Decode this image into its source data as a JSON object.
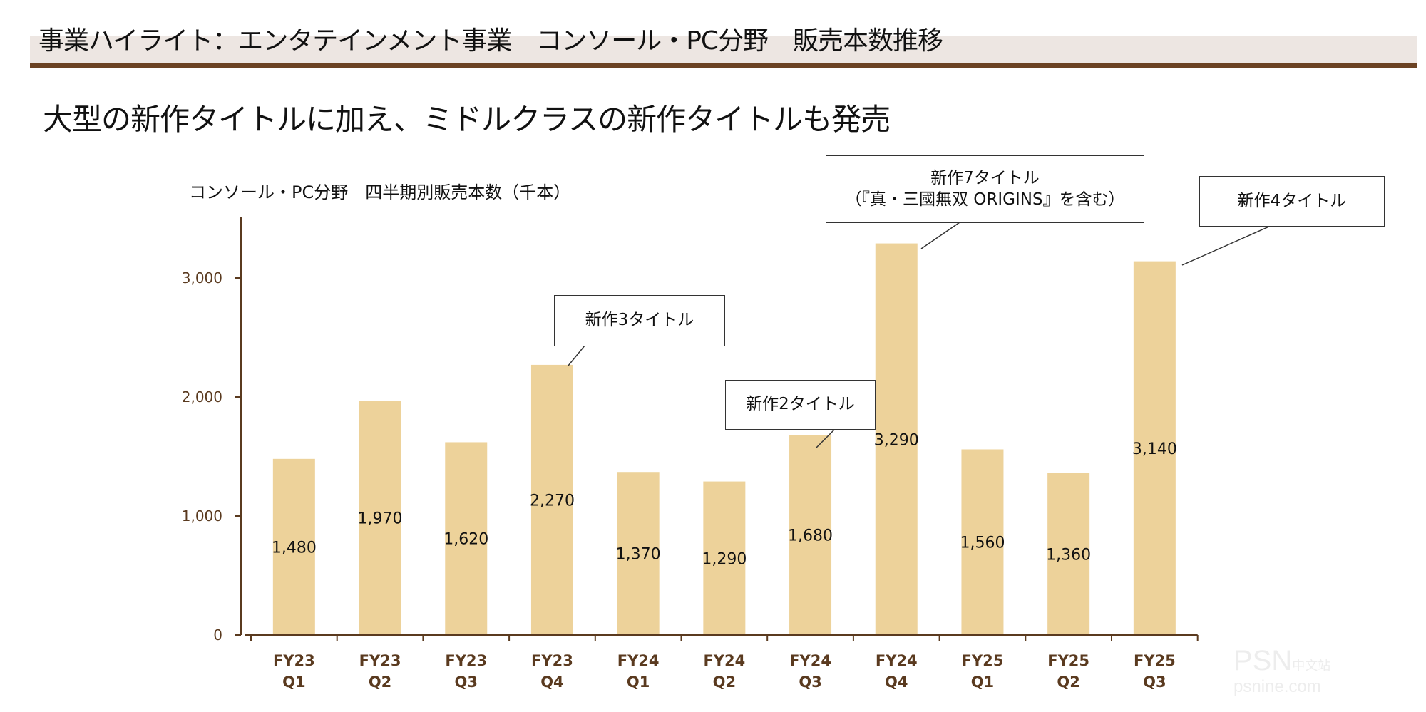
{
  "header": {
    "title": "事業ハイライト：エンタテインメント事業　コンソール・PC分野　販売本数推移",
    "subtitle": "大型の新作タイトルに加え、ミドルクラスの新作タイトルも発売"
  },
  "colors": {
    "bar": "#edd29a",
    "axis": "#5a3a1f",
    "band": "#ede6e2",
    "rule": "#6b4223"
  },
  "chart_data": {
    "type": "bar",
    "title": "コンソール・PC分野　四半期別販売本数（千本）",
    "categories": [
      [
        "FY23",
        "Q1"
      ],
      [
        "FY23",
        "Q2"
      ],
      [
        "FY23",
        "Q3"
      ],
      [
        "FY23",
        "Q4"
      ],
      [
        "FY24",
        "Q1"
      ],
      [
        "FY24",
        "Q2"
      ],
      [
        "FY24",
        "Q3"
      ],
      [
        "FY24",
        "Q4"
      ],
      [
        "FY25",
        "Q1"
      ],
      [
        "FY25",
        "Q2"
      ],
      [
        "FY25",
        "Q3"
      ]
    ],
    "values": [
      1480,
      1970,
      1620,
      2270,
      1370,
      1290,
      1680,
      3290,
      1560,
      1360,
      3140
    ],
    "value_labels": [
      "1,480",
      "1,970",
      "1,620",
      "2,270",
      "1,370",
      "1,290",
      "1,680",
      "3,290",
      "1,560",
      "1,360",
      "3,140"
    ],
    "yticks": [
      0,
      1000,
      2000,
      3000
    ],
    "ytick_labels": [
      "0",
      "1,000",
      "2,000",
      "3,000"
    ],
    "ylim": [
      0,
      3500
    ],
    "xlabel": "",
    "ylabel": "",
    "grid": false,
    "annotations": [
      {
        "category_index": 3,
        "lines": [
          "新作3タイトル"
        ]
      },
      {
        "category_index": 6,
        "lines": [
          "新作2タイトル"
        ]
      },
      {
        "category_index": 7,
        "lines": [
          "新作7タイトル",
          "（『真・三國無双 ORIGINS』を含む）"
        ]
      },
      {
        "category_index": 10,
        "lines": [
          "新作4タイトル"
        ]
      }
    ]
  },
  "watermark": {
    "brand": "PSN",
    "tag": "中文站",
    "site": "psnine.com"
  }
}
